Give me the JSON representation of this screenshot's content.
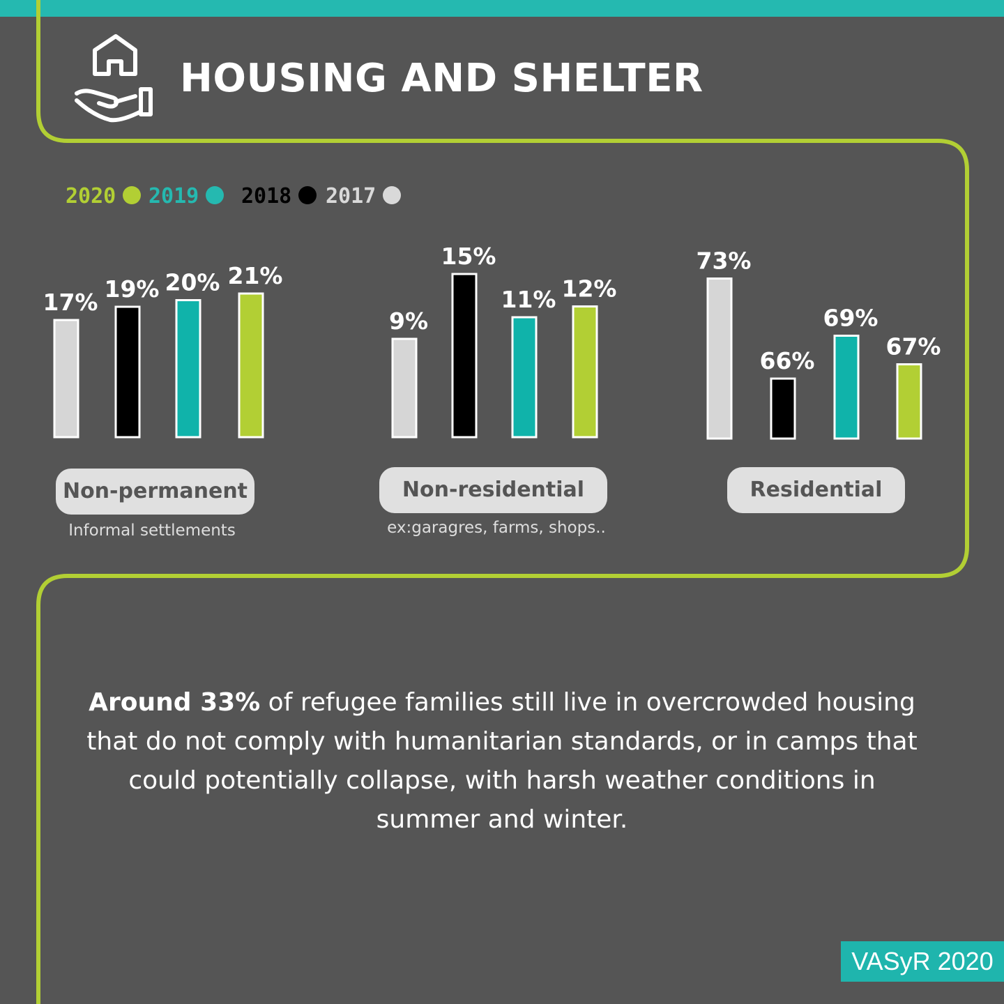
{
  "header": {
    "title": "HOUSING AND SHELTER",
    "icon": "house-in-hand-icon"
  },
  "colors": {
    "background": "#555555",
    "accent_green": "#b2cf34",
    "accent_teal": "#25b9b0",
    "bar_2020": "#b2cf34",
    "bar_2019": "#10b3aa",
    "bar_2018": "#000000",
    "bar_2017": "#d6d6d6"
  },
  "legend": [
    {
      "label": "2020",
      "color": "#b2cf34"
    },
    {
      "label": "2019",
      "color": "#25b9b0"
    },
    {
      "label": "2018",
      "color": "#000000"
    },
    {
      "label": "2017",
      "color": "#d9d9d9"
    }
  ],
  "chart_data": {
    "type": "bar",
    "groups": [
      {
        "category": "Non-permanent",
        "subtitle": "Informal settlements",
        "bars": [
          {
            "year": "2017",
            "value": 17,
            "label": "17%"
          },
          {
            "year": "2018",
            "value": 19,
            "label": "19%"
          },
          {
            "year": "2019",
            "value": 20,
            "label": "20%"
          },
          {
            "year": "2020",
            "value": 21,
            "label": "21%"
          }
        ]
      },
      {
        "category": "Non-residential",
        "subtitle": "ex:garagres, farms, shops..",
        "bars": [
          {
            "year": "2017",
            "value": 9,
            "label": "9%"
          },
          {
            "year": "2018",
            "value": 15,
            "label": "15%"
          },
          {
            "year": "2019",
            "value": 11,
            "label": "11%"
          },
          {
            "year": "2020",
            "value": 12,
            "label": "12%"
          }
        ]
      },
      {
        "category": "Residential",
        "subtitle": "",
        "bars": [
          {
            "year": "2017",
            "value": 73,
            "label": "73%"
          },
          {
            "year": "2018",
            "value": 66,
            "label": "66%"
          },
          {
            "year": "2019",
            "value": 69,
            "label": "69%"
          },
          {
            "year": "2020",
            "value": 67,
            "label": "67%"
          }
        ]
      }
    ]
  },
  "summary": {
    "bold": "Around 33%",
    "text": " of refugee families still live in overcrowded housing that do not comply with humanitarian standards, or in camps that could potentially collapse, with harsh weather conditions in summer and winter."
  },
  "footer": {
    "source": "VASyR 2020"
  }
}
